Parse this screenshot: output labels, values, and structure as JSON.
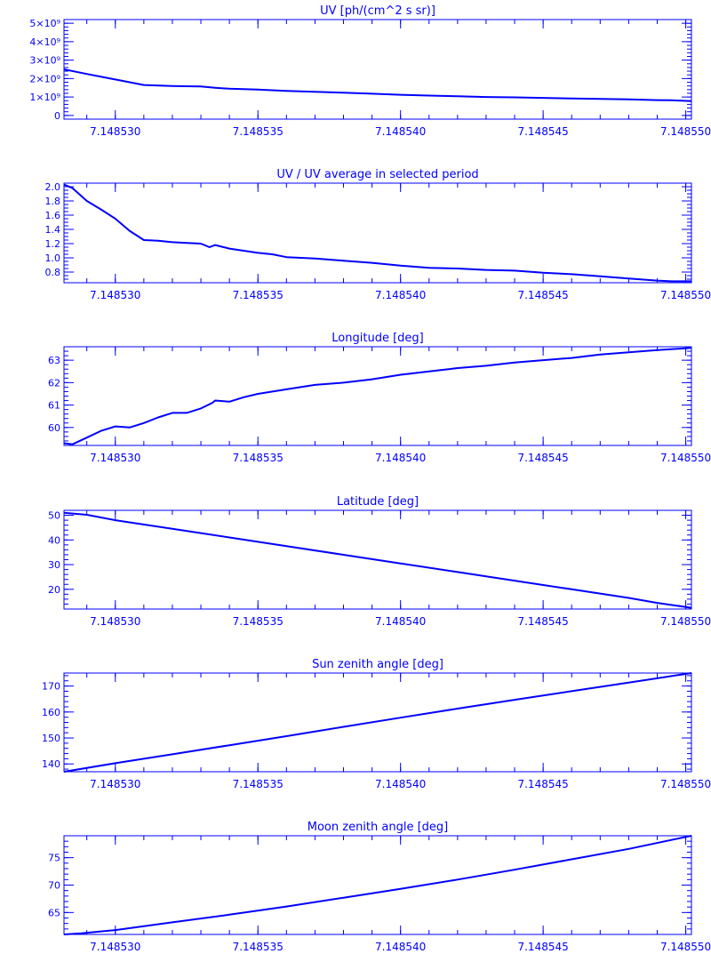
{
  "colors": {
    "foreground": "#0000ff",
    "background": "#ffffff"
  },
  "chart_data": [
    {
      "type": "line",
      "title": "UV [ph/(cm^2 s sr)]",
      "xlabel": "",
      "ylabel": "",
      "xlim": [
        7.1485282,
        7.1485502
      ],
      "ylim": [
        -200000000,
        5200000000
      ],
      "y_ticks": [
        0,
        1000000000,
        2000000000,
        3000000000,
        4000000000,
        5000000000
      ],
      "y_tick_labels": [
        "0",
        "1×10⁹",
        "2×10⁹",
        "3×10⁹",
        "4×10⁹",
        "5×10⁹"
      ],
      "y_minor": 5,
      "x_ticks": [
        7.14853,
        7.148535,
        7.14854,
        7.148545,
        7.14855
      ],
      "x_tick_labels": [
        "7.148530",
        "7.148535",
        "7.148540",
        "7.148545",
        "7.148550"
      ],
      "series": [
        {
          "x": [
            7.1485282,
            7.148529,
            7.14853,
            7.148531,
            7.148532,
            7.148533,
            7.1485335,
            7.148534,
            7.148535,
            7.148536,
            7.148537,
            7.148538,
            7.148539,
            7.14854,
            7.148541,
            7.148542,
            7.148543,
            7.148544,
            7.148545,
            7.148546,
            7.148547,
            7.148548,
            7.148549,
            7.1485495,
            7.1485502
          ],
          "y": [
            2500000000,
            2250000000,
            1950000000,
            1650000000,
            1600000000,
            1570000000,
            1500000000,
            1450000000,
            1400000000,
            1330000000,
            1280000000,
            1230000000,
            1180000000,
            1120000000,
            1080000000,
            1040000000,
            1000000000,
            980000000,
            950000000,
            920000000,
            900000000,
            870000000,
            830000000,
            820000000,
            780000000
          ]
        }
      ]
    },
    {
      "type": "line",
      "title": "UV / UV average in selected period",
      "xlabel": "",
      "ylabel": "",
      "xlim": [
        7.1485282,
        7.1485502
      ],
      "ylim": [
        0.65,
        2.05
      ],
      "y_ticks": [
        0.8,
        1.0,
        1.2,
        1.4,
        1.6,
        1.8,
        2.0
      ],
      "y_tick_labels": [
        "0.8",
        "1.0",
        "1.2",
        "1.4",
        "1.6",
        "1.8",
        "2.0"
      ],
      "y_minor": 4,
      "x_ticks": [
        7.14853,
        7.148535,
        7.14854,
        7.148545,
        7.14855
      ],
      "x_tick_labels": [
        "7.148530",
        "7.148535",
        "7.148540",
        "7.148545",
        "7.148550"
      ],
      "series": [
        {
          "x": [
            7.1485282,
            7.1485285,
            7.148529,
            7.1485295,
            7.14853,
            7.1485305,
            7.148531,
            7.1485315,
            7.148532,
            7.1485325,
            7.148533,
            7.1485333,
            7.1485335,
            7.148534,
            7.1485345,
            7.148535,
            7.1485355,
            7.148536,
            7.148537,
            7.148538,
            7.148539,
            7.14854,
            7.148541,
            7.148542,
            7.148543,
            7.148544,
            7.148545,
            7.148546,
            7.148547,
            7.148548,
            7.148549,
            7.1485495,
            7.1485502
          ],
          "y": [
            2.03,
            1.98,
            1.8,
            1.68,
            1.55,
            1.38,
            1.25,
            1.24,
            1.22,
            1.21,
            1.2,
            1.15,
            1.18,
            1.13,
            1.1,
            1.07,
            1.05,
            1.01,
            0.99,
            0.96,
            0.93,
            0.89,
            0.86,
            0.85,
            0.83,
            0.82,
            0.79,
            0.77,
            0.74,
            0.71,
            0.68,
            0.67,
            0.67
          ]
        }
      ]
    },
    {
      "type": "line",
      "title": "Longitude [deg]",
      "xlabel": "",
      "ylabel": "",
      "xlim": [
        7.1485282,
        7.1485502
      ],
      "ylim": [
        59.2,
        63.6
      ],
      "y_ticks": [
        60,
        61,
        62,
        63
      ],
      "y_tick_labels": [
        "60",
        "61",
        "62",
        "63"
      ],
      "y_minor": 5,
      "x_ticks": [
        7.14853,
        7.148535,
        7.14854,
        7.148545,
        7.14855
      ],
      "x_tick_labels": [
        "7.148530",
        "7.148535",
        "7.148540",
        "7.148545",
        "7.148550"
      ],
      "series": [
        {
          "x": [
            7.1485282,
            7.1485285,
            7.148529,
            7.1485295,
            7.14853,
            7.1485305,
            7.148531,
            7.1485315,
            7.148532,
            7.1485325,
            7.148533,
            7.1485334,
            7.1485335,
            7.148534,
            7.1485345,
            7.148535,
            7.148536,
            7.148537,
            7.148538,
            7.148539,
            7.14854,
            7.148541,
            7.148542,
            7.148543,
            7.148544,
            7.148545,
            7.148546,
            7.148547,
            7.148548,
            7.148549,
            7.1485502
          ],
          "y": [
            59.3,
            59.25,
            59.55,
            59.85,
            60.05,
            60.0,
            60.2,
            60.45,
            60.65,
            60.65,
            60.85,
            61.1,
            61.2,
            61.15,
            61.35,
            61.5,
            61.7,
            61.9,
            62.0,
            62.15,
            62.35,
            62.5,
            62.65,
            62.75,
            62.9,
            63.0,
            63.1,
            63.25,
            63.35,
            63.45,
            63.55
          ]
        }
      ]
    },
    {
      "type": "line",
      "title": "Latitude [deg]",
      "xlabel": "",
      "ylabel": "",
      "xlim": [
        7.1485282,
        7.1485502
      ],
      "ylim": [
        12.0,
        52.0
      ],
      "y_ticks": [
        20,
        30,
        40,
        50
      ],
      "y_tick_labels": [
        "20",
        "30",
        "40",
        "50"
      ],
      "y_minor": 5,
      "x_ticks": [
        7.14853,
        7.148535,
        7.14854,
        7.148545,
        7.14855
      ],
      "x_tick_labels": [
        "7.148530",
        "7.148535",
        "7.148540",
        "7.148545",
        "7.148550"
      ],
      "series": [
        {
          "x": [
            7.1485282,
            7.148529,
            7.14853,
            7.148532,
            7.148534,
            7.148536,
            7.148538,
            7.14854,
            7.148542,
            7.148544,
            7.148546,
            7.148548,
            7.148549,
            7.1485502
          ],
          "y": [
            51.0,
            50.2,
            48.0,
            44.5,
            41.0,
            37.5,
            34.0,
            30.5,
            27.0,
            23.5,
            20.0,
            16.5,
            14.5,
            12.5
          ]
        }
      ]
    },
    {
      "type": "line",
      "title": "Sun zenith angle [deg]",
      "xlabel": "",
      "ylabel": "",
      "xlim": [
        7.1485282,
        7.1485502
      ],
      "ylim": [
        137.0,
        175.0
      ],
      "y_ticks": [
        140,
        150,
        160,
        170
      ],
      "y_tick_labels": [
        "140",
        "150",
        "160",
        "170"
      ],
      "y_minor": 5,
      "x_ticks": [
        7.14853,
        7.148535,
        7.14854,
        7.148545,
        7.14855
      ],
      "x_tick_labels": [
        "7.148530",
        "7.148535",
        "7.148540",
        "7.148545",
        "7.148550"
      ],
      "series": [
        {
          "x": [
            7.1485282,
            7.14853,
            7.148532,
            7.148534,
            7.148536,
            7.148538,
            7.14854,
            7.148542,
            7.148544,
            7.148546,
            7.148548,
            7.1485502
          ],
          "y": [
            137.0,
            140.3,
            143.7,
            147.2,
            150.7,
            154.3,
            157.8,
            161.3,
            164.7,
            168.0,
            171.3,
            175.0
          ]
        }
      ]
    },
    {
      "type": "line",
      "title": "Moon zenith angle [deg]",
      "xlabel": "",
      "ylabel": "",
      "xlim": [
        7.1485282,
        7.1485502
      ],
      "ylim": [
        61.0,
        79.0
      ],
      "y_ticks": [
        65,
        70,
        75
      ],
      "y_tick_labels": [
        "65",
        "70",
        "75"
      ],
      "y_minor": 5,
      "x_ticks": [
        7.14853,
        7.148535,
        7.14854,
        7.148545,
        7.14855
      ],
      "x_tick_labels": [
        "7.148530",
        "7.148535",
        "7.148540",
        "7.148545",
        "7.148550"
      ],
      "series": [
        {
          "x": [
            7.1485282,
            7.1485288,
            7.14853,
            7.148532,
            7.148534,
            7.148536,
            7.148538,
            7.14854,
            7.148542,
            7.148544,
            7.148546,
            7.148548,
            7.1485502
          ],
          "y": [
            61.0,
            61.2,
            61.8,
            63.2,
            64.6,
            66.1,
            67.7,
            69.3,
            71.0,
            72.8,
            74.7,
            76.6,
            79.0
          ]
        }
      ]
    }
  ]
}
